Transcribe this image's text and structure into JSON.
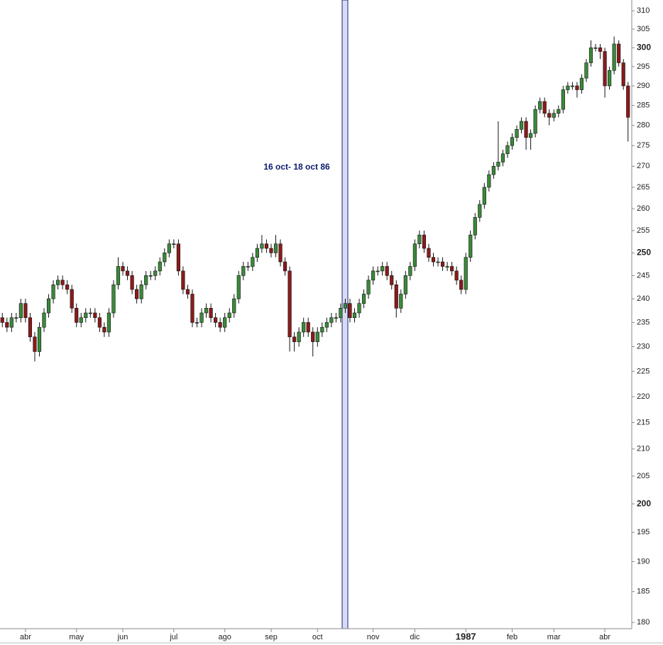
{
  "chart_data": {
    "type": "candlestick",
    "annotation": "16 oct- 18 oct 86",
    "categories": [
      null,
      null,
      null,
      null,
      null,
      "abr",
      null,
      null,
      null,
      null,
      null,
      null,
      null,
      null,
      null,
      null,
      "may",
      null,
      null,
      null,
      null,
      null,
      null,
      null,
      null,
      null,
      "jun",
      null,
      null,
      null,
      null,
      null,
      null,
      null,
      null,
      null,
      null,
      "jul",
      null,
      null,
      null,
      null,
      null,
      null,
      null,
      null,
      null,
      null,
      "ago",
      null,
      null,
      null,
      null,
      null,
      null,
      null,
      null,
      null,
      "sep",
      null,
      null,
      null,
      null,
      null,
      null,
      null,
      null,
      null,
      "oct",
      null,
      null,
      null,
      null,
      null,
      null,
      null,
      null,
      null,
      null,
      null,
      "nov",
      null,
      null,
      null,
      null,
      null,
      null,
      null,
      null,
      "dic",
      null,
      null,
      null,
      null,
      null,
      null,
      null,
      null,
      null,
      null,
      "1987",
      null,
      null,
      null,
      null,
      null,
      null,
      null,
      null,
      null,
      "feb",
      null,
      null,
      null,
      null,
      null,
      null,
      null,
      null,
      "mar",
      null,
      null,
      null,
      null,
      null,
      null,
      null,
      null,
      null,
      null,
      "abr",
      null,
      null,
      null,
      null,
      null
    ],
    "open": [
      236,
      235,
      234,
      236,
      236,
      239,
      236,
      232,
      229,
      234,
      237,
      240,
      243,
      244,
      243,
      242,
      238,
      235,
      236,
      237,
      237,
      236,
      234,
      233,
      237,
      243,
      247,
      246,
      245,
      242,
      240,
      243,
      245,
      245,
      246,
      248,
      250,
      252,
      252,
      246,
      242,
      241,
      235,
      235,
      237,
      238,
      236,
      235,
      234,
      236,
      237,
      240,
      245,
      247,
      247,
      249,
      251,
      252,
      251,
      250,
      252,
      248,
      246,
      232,
      231,
      233,
      235,
      233,
      231,
      233,
      234,
      235,
      236,
      236,
      238,
      239,
      236,
      237,
      239,
      241,
      244,
      246,
      246,
      247,
      245,
      243,
      238,
      241,
      245,
      247,
      252,
      254,
      251,
      249,
      248,
      248,
      247,
      247,
      246,
      244,
      242,
      249,
      254,
      258,
      261,
      265,
      268,
      270,
      271,
      273,
      275,
      277,
      279,
      281,
      277,
      278,
      284,
      286,
      283,
      282,
      283,
      284,
      289,
      290,
      290,
      289,
      292,
      296,
      300,
      300,
      299,
      290,
      294,
      301,
      296,
      290
    ],
    "high": [
      237,
      236,
      237,
      237,
      240,
      240,
      237,
      233,
      235,
      238,
      241,
      244,
      245,
      245,
      244,
      243,
      239,
      237,
      238,
      238,
      238,
      237,
      235,
      238,
      244,
      249,
      248,
      247,
      246,
      243,
      244,
      246,
      246,
      247,
      249,
      251,
      253,
      253,
      253,
      247,
      243,
      242,
      236,
      238,
      239,
      239,
      237,
      236,
      237,
      238,
      241,
      246,
      248,
      248,
      250,
      252,
      254,
      253,
      252,
      254,
      253,
      249,
      247,
      233,
      234,
      236,
      236,
      234,
      234,
      235,
      236,
      237,
      237,
      239,
      240,
      240,
      238,
      240,
      242,
      245,
      247,
      247,
      248,
      248,
      246,
      244,
      242,
      246,
      248,
      253,
      255,
      255,
      252,
      250,
      249,
      249,
      248,
      248,
      247,
      245,
      250,
      255,
      259,
      262,
      266,
      269,
      271,
      281,
      274,
      276,
      278,
      280,
      282,
      282,
      279,
      285,
      287,
      287,
      284,
      284,
      285,
      290,
      291,
      291,
      291,
      293,
      297,
      302,
      301,
      301,
      300,
      295,
      303,
      302,
      297,
      291
    ],
    "low": [
      234,
      233,
      233,
      235,
      235,
      235,
      231,
      227,
      228,
      233,
      236,
      239,
      242,
      242,
      241,
      237,
      234,
      234,
      235,
      236,
      235,
      233,
      232,
      232,
      236,
      242,
      245,
      244,
      241,
      239,
      239,
      242,
      244,
      244,
      245,
      247,
      249,
      251,
      245,
      241,
      240,
      234,
      234,
      234,
      236,
      235,
      234,
      233,
      233,
      235,
      236,
      239,
      244,
      246,
      246,
      248,
      250,
      250,
      249,
      249,
      247,
      245,
      229,
      229,
      230,
      232,
      232,
      228,
      230,
      232,
      233,
      234,
      235,
      235,
      237,
      235,
      235,
      236,
      238,
      240,
      243,
      245,
      245,
      244,
      242,
      236,
      237,
      240,
      244,
      246,
      251,
      250,
      248,
      247,
      247,
      246,
      246,
      245,
      243,
      241,
      241,
      248,
      253,
      257,
      260,
      264,
      267,
      269,
      270,
      272,
      274,
      276,
      278,
      274,
      274,
      277,
      283,
      282,
      280,
      281,
      282,
      283,
      288,
      289,
      287,
      288,
      291,
      295,
      299,
      297,
      287,
      289,
      293,
      295,
      289,
      276
    ],
    "close": [
      235,
      234,
      236,
      236,
      239,
      236,
      232,
      229,
      234,
      237,
      240,
      243,
      244,
      243,
      242,
      238,
      235,
      236,
      237,
      237,
      236,
      234,
      233,
      237,
      243,
      247,
      246,
      245,
      242,
      240,
      243,
      245,
      245,
      246,
      248,
      250,
      252,
      252,
      246,
      242,
      241,
      235,
      235,
      237,
      238,
      236,
      235,
      234,
      236,
      237,
      240,
      245,
      247,
      247,
      249,
      251,
      252,
      251,
      250,
      252,
      248,
      246,
      232,
      231,
      233,
      235,
      233,
      231,
      233,
      234,
      235,
      236,
      236,
      238,
      239,
      236,
      237,
      239,
      241,
      244,
      246,
      246,
      247,
      245,
      243,
      238,
      241,
      245,
      247,
      252,
      254,
      251,
      249,
      248,
      248,
      247,
      247,
      246,
      244,
      242,
      249,
      254,
      258,
      261,
      265,
      268,
      270,
      271,
      273,
      275,
      277,
      279,
      281,
      277,
      278,
      284,
      286,
      283,
      282,
      283,
      284,
      289,
      290,
      290,
      289,
      292,
      296,
      300,
      300,
      299,
      290,
      294,
      301,
      296,
      290,
      282
    ],
    "up_color": "#3a8a3a",
    "down_color": "#8b1a1a",
    "ylim": [
      179,
      313
    ],
    "log_y": true,
    "yticks": [
      180,
      185,
      190,
      195,
      200,
      205,
      210,
      215,
      220,
      225,
      230,
      235,
      240,
      245,
      250,
      255,
      260,
      265,
      270,
      275,
      280,
      285,
      290,
      295,
      300,
      305,
      310
    ]
  }
}
